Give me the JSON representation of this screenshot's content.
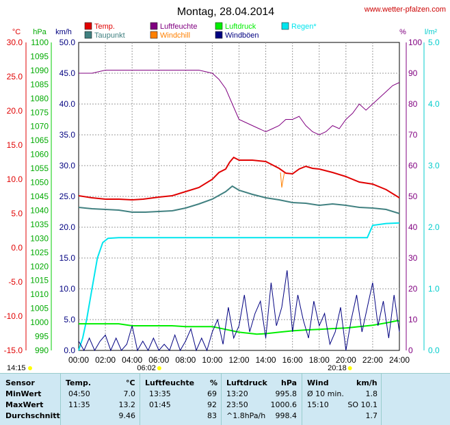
{
  "title": "Montag, 28.04.2014",
  "site": "www.wetter-pfalzen.com",
  "units": {
    "c": "°C",
    "hpa": "hPa",
    "kmh": "km/h",
    "pct": "%",
    "lm2": "l/m²"
  },
  "legend": [
    {
      "label": "Temp.",
      "color": "#e00000"
    },
    {
      "label": "Luftfeuchte",
      "color": "#800080"
    },
    {
      "label": "Luftdruck",
      "color": "#00ee00"
    },
    {
      "label": "Regen*",
      "color": "#00e5ee"
    },
    {
      "label": "Taupunkt",
      "color": "#408080"
    },
    {
      "label": "Windchill",
      "color": "#ff8000"
    },
    {
      "label": "Windböen",
      "color": "#000080"
    }
  ],
  "sun": {
    "rise": "06:02",
    "set": "20:18",
    "left": "14:15"
  },
  "chart_data": {
    "type": "line",
    "x_ticks": [
      "00:00",
      "02:00",
      "04:00",
      "06:00",
      "08:00",
      "10:00",
      "12:00",
      "14:00",
      "16:00",
      "18:00",
      "20:00",
      "22:00",
      "24:00"
    ],
    "axes": {
      "temp": {
        "unit": "°C",
        "ticks": [
          "30.0",
          "25.0",
          "20.0",
          "15.0",
          "10.0",
          "5.0",
          "0.0",
          "-5.0",
          "-10.0",
          "-15.0"
        ],
        "range": [
          -15,
          30
        ]
      },
      "pressure": {
        "unit": "hPa",
        "ticks": [
          "1100",
          "1095",
          "1090",
          "1085",
          "1080",
          "1075",
          "1070",
          "1065",
          "1060",
          "1055",
          "1050",
          "1045",
          "1040",
          "1035",
          "1030",
          "1025",
          "1020",
          "1015",
          "1010",
          "1005",
          "1000",
          "995",
          "990"
        ],
        "range": [
          990,
          1100
        ]
      },
      "wind": {
        "unit": "km/h",
        "ticks": [
          "50.0",
          "45.0",
          "40.0",
          "35.0",
          "30.0",
          "25.0",
          "20.0",
          "15.0",
          "10.0",
          "5.0",
          "0.0"
        ],
        "range": [
          0,
          50
        ]
      },
      "humidity": {
        "unit": "%",
        "ticks": [
          "100",
          "90",
          "80",
          "70",
          "60",
          "50",
          "40",
          "30",
          "20",
          "10",
          "0"
        ],
        "range": [
          0,
          100
        ]
      },
      "rain": {
        "unit": "l/m²",
        "ticks": [
          "5.0",
          "4.0",
          "3.0",
          "2.0",
          "1.0",
          "0.0"
        ],
        "range": [
          0,
          5
        ]
      }
    },
    "series": [
      {
        "name": "Temp.",
        "axis": "temp",
        "color": "#e00000",
        "x": [
          0,
          1,
          2,
          3,
          4,
          4.83,
          6,
          7,
          8,
          9,
          10,
          10.5,
          11,
          11.3,
          11.6,
          12,
          13,
          14,
          15,
          15.5,
          16,
          16.5,
          17,
          17.5,
          18,
          19,
          20,
          21,
          22,
          23,
          24
        ],
        "y": [
          7.6,
          7.3,
          7.1,
          7.1,
          7.0,
          7.1,
          7.4,
          7.6,
          8.2,
          8.8,
          10.0,
          11.0,
          11.5,
          12.5,
          13.2,
          12.8,
          12.8,
          12.6,
          11.6,
          10.9,
          10.8,
          11.5,
          11.9,
          11.6,
          11.5,
          11.0,
          10.4,
          9.6,
          9.3,
          8.5,
          7.3
        ]
      },
      {
        "name": "Taupunkt",
        "axis": "temp",
        "color": "#408080",
        "x": [
          0,
          1,
          2,
          3,
          4,
          5,
          6,
          7,
          8,
          9,
          10,
          11,
          11.5,
          12,
          13,
          14,
          15,
          16,
          17,
          18,
          19,
          20,
          21,
          22,
          23,
          24
        ],
        "y": [
          5.9,
          5.7,
          5.6,
          5.5,
          5.2,
          5.2,
          5.3,
          5.4,
          5.8,
          6.4,
          7.1,
          8.2,
          9.0,
          8.4,
          7.8,
          7.3,
          7.0,
          6.6,
          6.5,
          6.2,
          6.4,
          6.2,
          5.9,
          5.8,
          5.6,
          5.0
        ]
      },
      {
        "name": "Luftfeuchte",
        "axis": "humidity",
        "color": "#800080",
        "x": [
          0,
          1,
          2,
          3,
          4,
          5,
          6,
          7,
          8,
          9,
          10,
          10.5,
          11,
          11.5,
          12,
          12.5,
          13,
          13.5,
          14,
          14.5,
          15,
          15.5,
          16,
          16.5,
          17,
          17.5,
          18,
          18.5,
          19,
          19.5,
          20,
          20.5,
          21,
          21.5,
          22,
          22.5,
          23,
          23.5,
          24
        ],
        "y": [
          90,
          90,
          91,
          91,
          91,
          91,
          91,
          91,
          91,
          91,
          90,
          88,
          85,
          80,
          75,
          74,
          73,
          72,
          71,
          72,
          73,
          75,
          75,
          76,
          73,
          71,
          70,
          71,
          73,
          72,
          75,
          77,
          80,
          78,
          80,
          82,
          84,
          86,
          87
        ]
      },
      {
        "name": "Luftdruck",
        "axis": "pressure",
        "color": "#00ee00",
        "x": [
          0,
          1,
          2,
          3,
          4,
          5,
          6,
          7,
          8,
          9,
          10,
          11,
          12,
          13,
          13.33,
          14,
          15,
          16,
          17,
          18,
          19,
          20,
          21,
          22,
          23,
          23.83,
          24
        ],
        "y": [
          999.5,
          999.5,
          999.5,
          999.5,
          998.8,
          998.8,
          998.8,
          998.8,
          998.5,
          998.5,
          998.5,
          997.5,
          996.5,
          996.0,
          995.8,
          996.0,
          996.5,
          997.0,
          997.3,
          997.5,
          997.8,
          998.0,
          998.5,
          999.0,
          999.8,
          1000.6,
          1000.5
        ]
      },
      {
        "name": "Regen*",
        "axis": "rain",
        "color": "#00e5ee",
        "x": [
          0,
          0.3,
          0.6,
          1,
          1.4,
          1.8,
          2.2,
          3,
          5,
          8,
          12,
          16,
          20,
          21,
          21.3,
          21.6,
          22,
          23,
          24
        ],
        "y": [
          0,
          0.2,
          0.5,
          1.0,
          1.5,
          1.75,
          1.82,
          1.83,
          1.83,
          1.83,
          1.83,
          1.83,
          1.83,
          1.83,
          1.83,
          1.83,
          2.03,
          2.06,
          2.07
        ]
      },
      {
        "name": "Windchill",
        "axis": "temp",
        "color": "#ff8000",
        "x": [
          15.1,
          15.2,
          15.3,
          15.4
        ],
        "y": [
          11.0,
          8.8,
          10.0,
          11.0
        ]
      },
      {
        "name": "Windböen",
        "axis": "wind",
        "color": "#000080",
        "x": [
          0,
          0.4,
          0.8,
          1.2,
          1.6,
          2,
          2.4,
          2.8,
          3.2,
          3.6,
          4,
          4.4,
          4.8,
          5.2,
          5.6,
          6,
          6.4,
          6.8,
          7.2,
          7.6,
          8,
          8.4,
          8.8,
          9.2,
          9.6,
          10,
          10.4,
          10.8,
          11.2,
          11.6,
          12,
          12.4,
          12.8,
          13.2,
          13.6,
          14,
          14.4,
          14.8,
          15.2,
          15.6,
          16,
          16.4,
          16.8,
          17.2,
          17.6,
          18,
          18.4,
          18.8,
          19.2,
          19.6,
          20,
          20.4,
          20.8,
          21.2,
          21.6,
          22,
          22.4,
          22.8,
          23.2,
          23.6,
          24
        ],
        "y": [
          1.5,
          0,
          2.0,
          0,
          1.5,
          2.5,
          0,
          2.0,
          0,
          1.0,
          4.0,
          0,
          1.5,
          0,
          2.0,
          0,
          1.0,
          0,
          2.5,
          0,
          1.5,
          3.5,
          0,
          2.0,
          0,
          3.0,
          5.0,
          1.0,
          7.0,
          2.0,
          4.0,
          9.0,
          3.0,
          6.0,
          8.0,
          2.0,
          11.0,
          4.0,
          7.0,
          13.0,
          3.0,
          9.0,
          5.0,
          2.0,
          8.0,
          4.0,
          6.0,
          1.0,
          3.0,
          7.0,
          0,
          5.0,
          9.0,
          3.0,
          7.0,
          11.0,
          4.0,
          8.0,
          2.0,
          9.0,
          3.0
        ]
      }
    ]
  },
  "table": {
    "h_sensor": "Sensor",
    "h_temp": "Temp.",
    "h_temp_u": "°C",
    "h_hum": "Luftfeuchte",
    "h_hum_u": "%",
    "h_pres": "Luftdruck",
    "h_pres_u": "hPa",
    "h_wind": "Wind",
    "h_wind_u": "km/h",
    "rows": [
      {
        "label": "MinWert",
        "t_time": "04:50",
        "t_val": "7.0",
        "h_time": "13:35",
        "h_val": "69",
        "p_time": "13:20",
        "p_val": "995.8",
        "w_time": "Ø 10 min.",
        "w_val": "1.8"
      },
      {
        "label": "MaxWert",
        "t_time": "11:35",
        "t_val": "13.2",
        "h_time": "01:45",
        "h_val": "92",
        "p_time": "23:50",
        "p_val": "1000.6",
        "w_time": "15:10",
        "w_val": "SO 10.1"
      },
      {
        "label": "Durchschnitt",
        "t_time": "",
        "t_val": "9.46",
        "h_time": "",
        "h_val": "83",
        "p_time": "^1.8hPa/h",
        "p_val": "998.4",
        "w_time": "",
        "w_val": "1.7"
      }
    ]
  }
}
